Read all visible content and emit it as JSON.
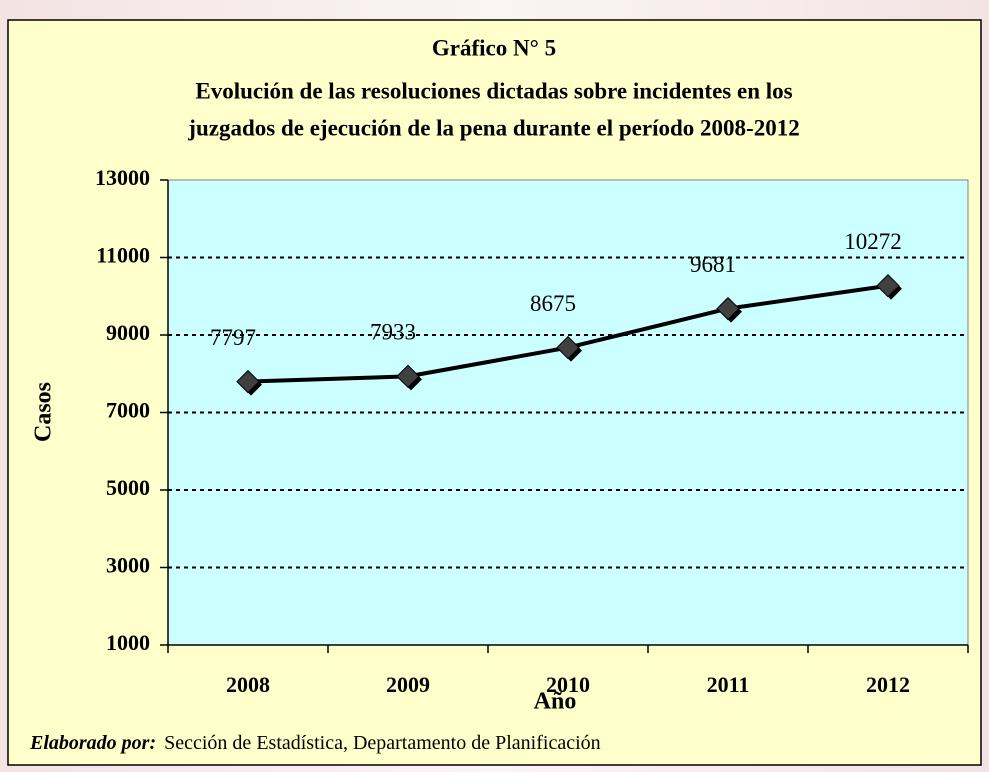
{
  "chart_data": {
    "type": "line",
    "title_lines": [
      "Gráfico N° 5",
      "Evolución de las resoluciones dictadas sobre incidentes en los",
      "juzgados de ejecución de la pena durante el período 2008-2012"
    ],
    "categories": [
      "2008",
      "2009",
      "2010",
      "2011",
      "2012"
    ],
    "series": [
      {
        "name": "Casos",
        "color": "#000000",
        "values": [
          7797,
          7933,
          8675,
          9681,
          10272
        ]
      }
    ],
    "ylim": [
      1000,
      13000
    ],
    "yticks": [
      1000,
      3000,
      5000,
      7000,
      9000,
      11000,
      13000
    ],
    "grid": true,
    "ylabel": "Casos",
    "xlabel": "Año",
    "footer": {
      "label": "Elaborado por:",
      "text": "Sección de Estadística, Departamento de Planificación"
    }
  }
}
